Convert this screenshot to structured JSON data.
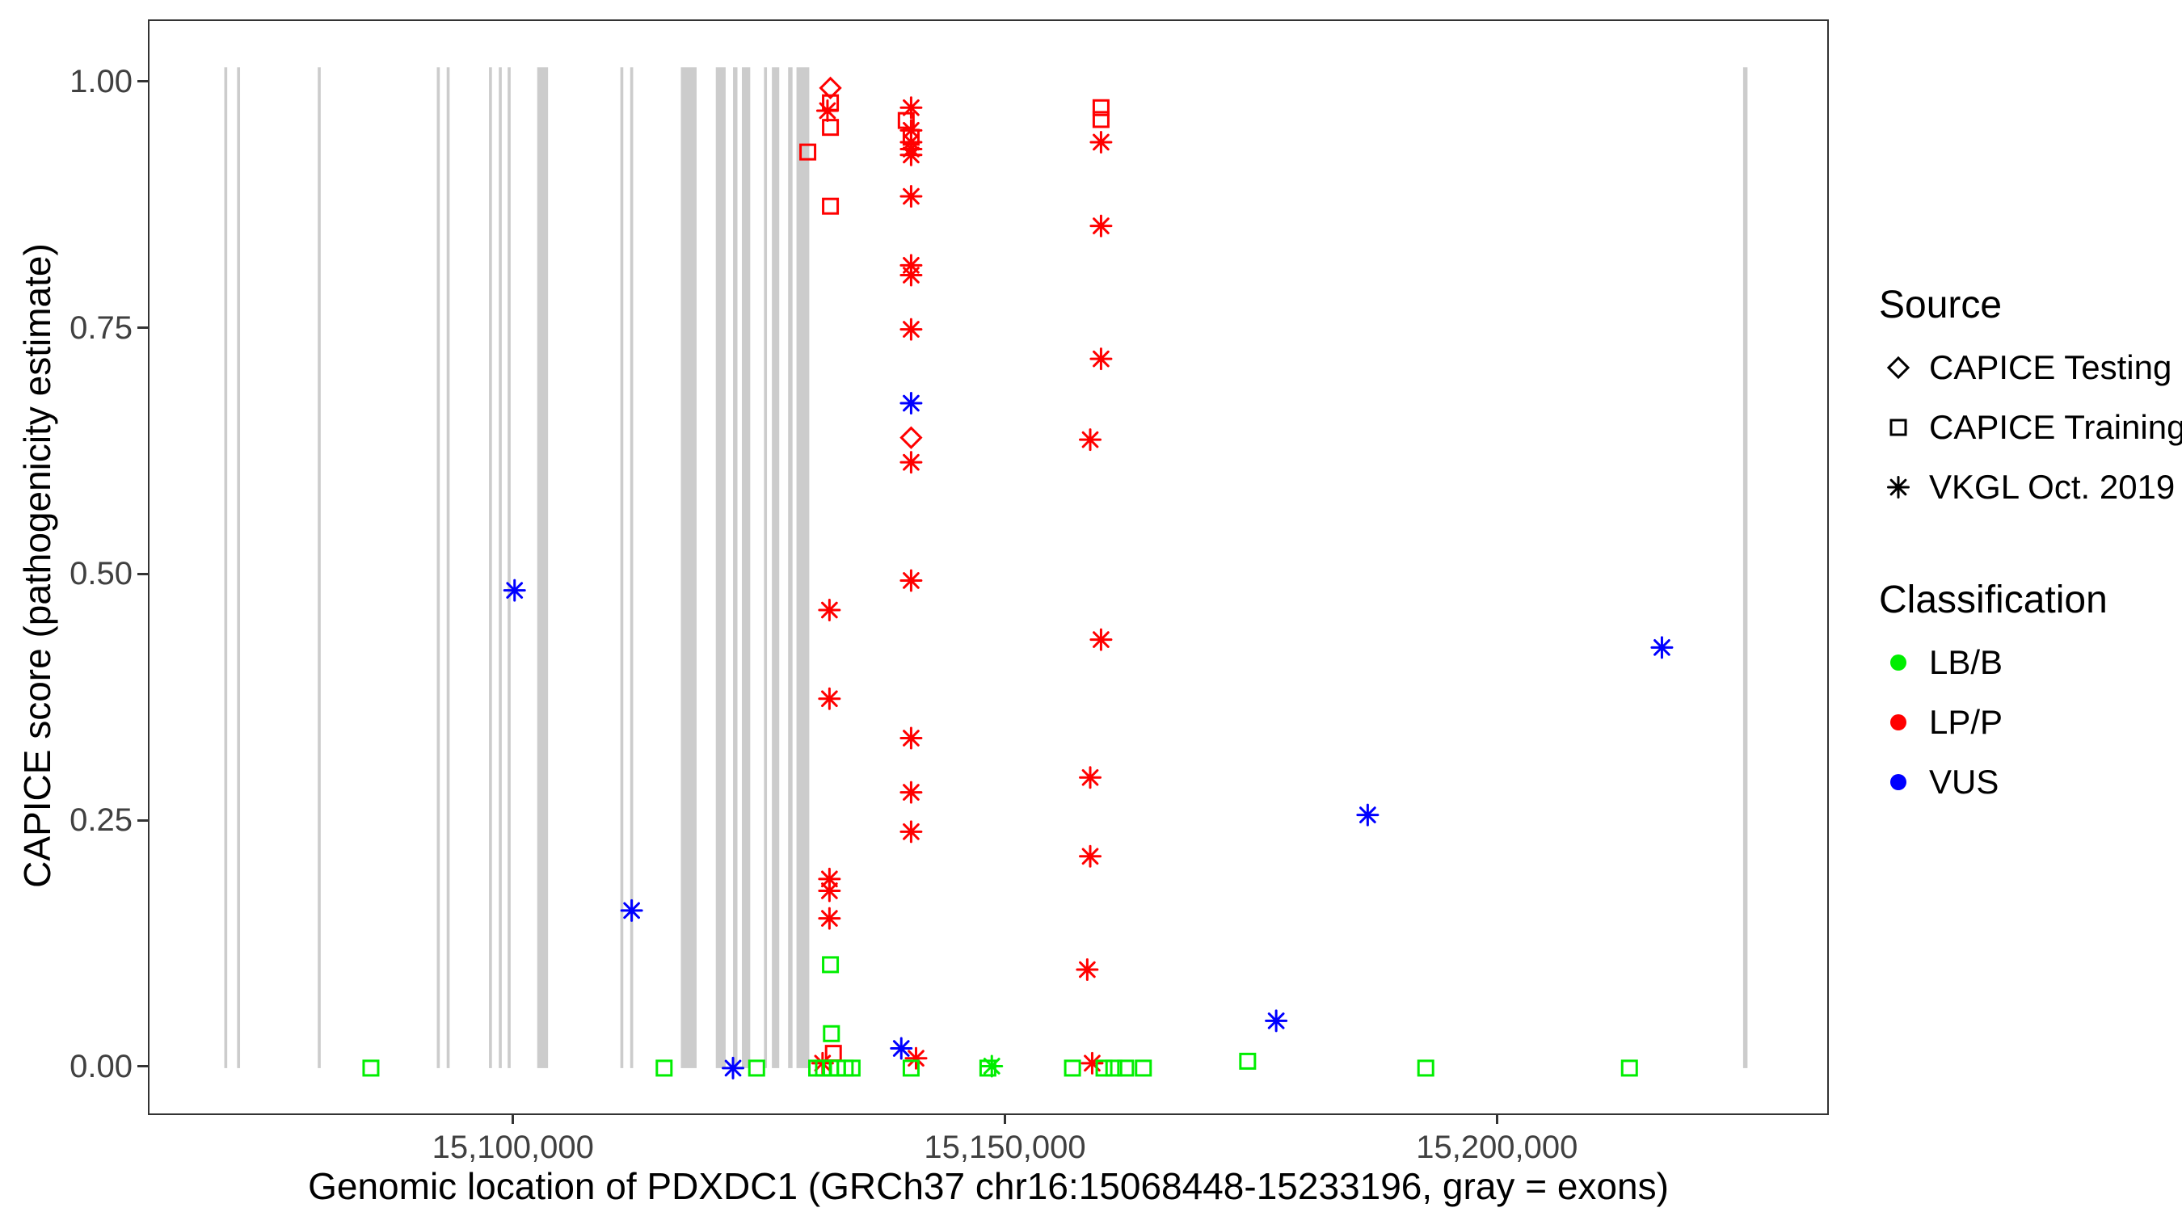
{
  "figure": {
    "y_axis_title": "CAPICE score (pathogenicity estimate)",
    "x_axis_title": "Genomic location of PDXDC1 (GRCh37 chr16:15068448-15233196, gray = exons)"
  },
  "legend": {
    "source": {
      "title": "Source",
      "items": [
        {
          "shape": "diamond",
          "label": "CAPICE Testing"
        },
        {
          "shape": "square",
          "label": "CAPICE Training"
        },
        {
          "shape": "asterisk",
          "label": "VKGL Oct. 2019"
        }
      ]
    },
    "classification": {
      "title": "Classification",
      "items": [
        {
          "color": "#00ee00",
          "label": "LB/B"
        },
        {
          "color": "#ff0000",
          "label": "LP/P"
        },
        {
          "color": "#0000ff",
          "label": "VUS"
        }
      ]
    }
  },
  "chart_data": {
    "type": "scatter",
    "title": "",
    "xlabel": "Genomic location of PDXDC1 (GRCh37 chr16:15068448-15233196, gray = exons)",
    "ylabel": "CAPICE score (pathogenicity estimate)",
    "xlim": [
      15062900,
      15233400
    ],
    "ylim": [
      -0.046,
      1.063
    ],
    "grid": false,
    "legend_position": "right",
    "x_ticks": [
      {
        "value": 15100000,
        "label": "15,100,000"
      },
      {
        "value": 15150000,
        "label": "15,150,000"
      },
      {
        "value": 15200000,
        "label": "15,200,000"
      }
    ],
    "y_ticks": [
      {
        "value": 0.0,
        "label": "0.00"
      },
      {
        "value": 0.25,
        "label": "0.25"
      },
      {
        "value": 0.5,
        "label": "0.50"
      },
      {
        "value": 0.75,
        "label": "0.75"
      },
      {
        "value": 1.0,
        "label": "1.00"
      }
    ],
    "exon_color": "#cccccc",
    "exon_band": [
      0.0,
      1.016
    ],
    "class_colors": {
      "LB/B": "#00ee00",
      "LP/P": "#ff0000",
      "VUS": "#0000ff"
    },
    "shape_legend": {
      "diamond": "CAPICE Testing",
      "square": "CAPICE Training",
      "asterisk": "VKGL Oct. 2019"
    },
    "exons": [
      {
        "start": 15070500,
        "end": 15070800
      },
      {
        "start": 15071800,
        "end": 15072100
      },
      {
        "start": 15080000,
        "end": 15080300
      },
      {
        "start": 15092100,
        "end": 15092400
      },
      {
        "start": 15093100,
        "end": 15093400
      },
      {
        "start": 15097400,
        "end": 15097700
      },
      {
        "start": 15098400,
        "end": 15098700
      },
      {
        "start": 15099300,
        "end": 15099600
      },
      {
        "start": 15102300,
        "end": 15103400
      },
      {
        "start": 15110750,
        "end": 15111050
      },
      {
        "start": 15111750,
        "end": 15112050
      },
      {
        "start": 15116900,
        "end": 15118500
      },
      {
        "start": 15120450,
        "end": 15121450
      },
      {
        "start": 15122200,
        "end": 15122650
      },
      {
        "start": 15123100,
        "end": 15123950
      },
      {
        "start": 15125350,
        "end": 15125650
      },
      {
        "start": 15126150,
        "end": 15126900
      },
      {
        "start": 15127800,
        "end": 15128250
      },
      {
        "start": 15128650,
        "end": 15129950
      },
      {
        "start": 15224850,
        "end": 15225300
      }
    ],
    "points": [
      {
        "x": 15100000,
        "y": 0.485,
        "shape": "asterisk",
        "cls": "VUS"
      },
      {
        "x": 15111900,
        "y": 0.16,
        "shape": "asterisk",
        "cls": "VUS"
      },
      {
        "x": 15122200,
        "y": 0.0,
        "shape": "asterisk",
        "cls": "VUS"
      },
      {
        "x": 15139300,
        "y": 0.02,
        "shape": "asterisk",
        "cls": "VUS"
      },
      {
        "x": 15140300,
        "y": 0.675,
        "shape": "asterisk",
        "cls": "VUS"
      },
      {
        "x": 15177400,
        "y": 0.048,
        "shape": "asterisk",
        "cls": "VUS"
      },
      {
        "x": 15186700,
        "y": 0.257,
        "shape": "asterisk",
        "cls": "VUS"
      },
      {
        "x": 15216600,
        "y": 0.427,
        "shape": "asterisk",
        "cls": "VUS"
      },
      {
        "x": 15132100,
        "y": 0.995,
        "shape": "diamond",
        "cls": "LP/P"
      },
      {
        "x": 15132100,
        "y": 0.98,
        "shape": "square",
        "cls": "LP/P"
      },
      {
        "x": 15131800,
        "y": 0.972,
        "shape": "asterisk",
        "cls": "LP/P"
      },
      {
        "x": 15132100,
        "y": 0.955,
        "shape": "square",
        "cls": "LP/P"
      },
      {
        "x": 15129800,
        "y": 0.93,
        "shape": "square",
        "cls": "LP/P"
      },
      {
        "x": 15132100,
        "y": 0.875,
        "shape": "square",
        "cls": "LP/P"
      },
      {
        "x": 15132000,
        "y": 0.465,
        "shape": "asterisk",
        "cls": "LP/P"
      },
      {
        "x": 15132000,
        "y": 0.375,
        "shape": "asterisk",
        "cls": "LP/P"
      },
      {
        "x": 15132000,
        "y": 0.192,
        "shape": "asterisk",
        "cls": "LP/P"
      },
      {
        "x": 15132000,
        "y": 0.18,
        "shape": "asterisk",
        "cls": "LP/P"
      },
      {
        "x": 15132000,
        "y": 0.152,
        "shape": "asterisk",
        "cls": "LP/P"
      },
      {
        "x": 15132400,
        "y": 0.015,
        "shape": "square",
        "cls": "LP/P"
      },
      {
        "x": 15131300,
        "y": 0.005,
        "shape": "asterisk",
        "cls": "LP/P"
      },
      {
        "x": 15132100,
        "y": 0.105,
        "shape": "square",
        "cls": "LB/B"
      },
      {
        "x": 15132200,
        "y": 0.035,
        "shape": "square",
        "cls": "LB/B"
      },
      {
        "x": 15130700,
        "y": 0.0,
        "shape": "square",
        "cls": "LB/B"
      },
      {
        "x": 15131400,
        "y": 0.0,
        "shape": "square",
        "cls": "LB/B"
      },
      {
        "x": 15132100,
        "y": 0.0,
        "shape": "square",
        "cls": "LB/B"
      },
      {
        "x": 15132800,
        "y": 0.0,
        "shape": "square",
        "cls": "LB/B"
      },
      {
        "x": 15133600,
        "y": 0.0,
        "shape": "square",
        "cls": "LB/B"
      },
      {
        "x": 15134300,
        "y": 0.0,
        "shape": "square",
        "cls": "LB/B"
      },
      {
        "x": 15140300,
        "y": 0.975,
        "shape": "asterisk",
        "cls": "LP/P"
      },
      {
        "x": 15139800,
        "y": 0.962,
        "shape": "square",
        "cls": "LP/P"
      },
      {
        "x": 15140300,
        "y": 0.952,
        "shape": "asterisk",
        "cls": "LP/P"
      },
      {
        "x": 15140300,
        "y": 0.945,
        "shape": "square",
        "cls": "LP/P"
      },
      {
        "x": 15140300,
        "y": 0.94,
        "shape": "asterisk",
        "cls": "LP/P"
      },
      {
        "x": 15140300,
        "y": 0.933,
        "shape": "asterisk",
        "cls": "LP/P"
      },
      {
        "x": 15140300,
        "y": 0.927,
        "shape": "asterisk",
        "cls": "LP/P"
      },
      {
        "x": 15140300,
        "y": 0.885,
        "shape": "asterisk",
        "cls": "LP/P"
      },
      {
        "x": 15140300,
        "y": 0.815,
        "shape": "asterisk",
        "cls": "LP/P"
      },
      {
        "x": 15140300,
        "y": 0.805,
        "shape": "asterisk",
        "cls": "LP/P"
      },
      {
        "x": 15140300,
        "y": 0.75,
        "shape": "asterisk",
        "cls": "LP/P"
      },
      {
        "x": 15140300,
        "y": 0.64,
        "shape": "diamond",
        "cls": "LP/P"
      },
      {
        "x": 15140300,
        "y": 0.615,
        "shape": "asterisk",
        "cls": "LP/P"
      },
      {
        "x": 15140300,
        "y": 0.495,
        "shape": "asterisk",
        "cls": "LP/P"
      },
      {
        "x": 15140300,
        "y": 0.335,
        "shape": "asterisk",
        "cls": "LP/P"
      },
      {
        "x": 15140300,
        "y": 0.28,
        "shape": "asterisk",
        "cls": "LP/P"
      },
      {
        "x": 15140300,
        "y": 0.24,
        "shape": "asterisk",
        "cls": "LP/P"
      },
      {
        "x": 15140800,
        "y": 0.01,
        "shape": "asterisk",
        "cls": "LP/P"
      },
      {
        "x": 15140300,
        "y": 0.0,
        "shape": "square",
        "cls": "LB/B"
      },
      {
        "x": 15159600,
        "y": 0.975,
        "shape": "square",
        "cls": "LP/P"
      },
      {
        "x": 15159600,
        "y": 0.963,
        "shape": "square",
        "cls": "LP/P"
      },
      {
        "x": 15159600,
        "y": 0.94,
        "shape": "asterisk",
        "cls": "LP/P"
      },
      {
        "x": 15159600,
        "y": 0.855,
        "shape": "asterisk",
        "cls": "LP/P"
      },
      {
        "x": 15159600,
        "y": 0.72,
        "shape": "asterisk",
        "cls": "LP/P"
      },
      {
        "x": 15158500,
        "y": 0.638,
        "shape": "asterisk",
        "cls": "LP/P"
      },
      {
        "x": 15159600,
        "y": 0.435,
        "shape": "asterisk",
        "cls": "LP/P"
      },
      {
        "x": 15158500,
        "y": 0.295,
        "shape": "asterisk",
        "cls": "LP/P"
      },
      {
        "x": 15158500,
        "y": 0.215,
        "shape": "asterisk",
        "cls": "LP/P"
      },
      {
        "x": 15158200,
        "y": 0.1,
        "shape": "asterisk",
        "cls": "LP/P"
      },
      {
        "x": 15158700,
        "y": 0.005,
        "shape": "asterisk",
        "cls": "LP/P"
      },
      {
        "x": 15156700,
        "y": 0.0,
        "shape": "square",
        "cls": "LB/B"
      },
      {
        "x": 15159900,
        "y": 0.0,
        "shape": "square",
        "cls": "LB/B"
      },
      {
        "x": 15160900,
        "y": 0.0,
        "shape": "square",
        "cls": "LB/B"
      },
      {
        "x": 15162100,
        "y": 0.0,
        "shape": "square",
        "cls": "LB/B"
      },
      {
        "x": 15163900,
        "y": 0.0,
        "shape": "square",
        "cls": "LB/B"
      },
      {
        "x": 15085400,
        "y": 0.0,
        "shape": "square",
        "cls": "LB/B"
      },
      {
        "x": 15115200,
        "y": 0.0,
        "shape": "square",
        "cls": "LB/B"
      },
      {
        "x": 15124600,
        "y": 0.0,
        "shape": "square",
        "cls": "LB/B"
      },
      {
        "x": 15148100,
        "y": 0.0,
        "shape": "square",
        "cls": "LB/B"
      },
      {
        "x": 15148500,
        "y": 0.002,
        "shape": "asterisk",
        "cls": "LB/B"
      },
      {
        "x": 15174500,
        "y": 0.007,
        "shape": "square",
        "cls": "LB/B"
      },
      {
        "x": 15192600,
        "y": 0.0,
        "shape": "square",
        "cls": "LB/B"
      },
      {
        "x": 15213300,
        "y": 0.0,
        "shape": "square",
        "cls": "LB/B"
      }
    ]
  }
}
